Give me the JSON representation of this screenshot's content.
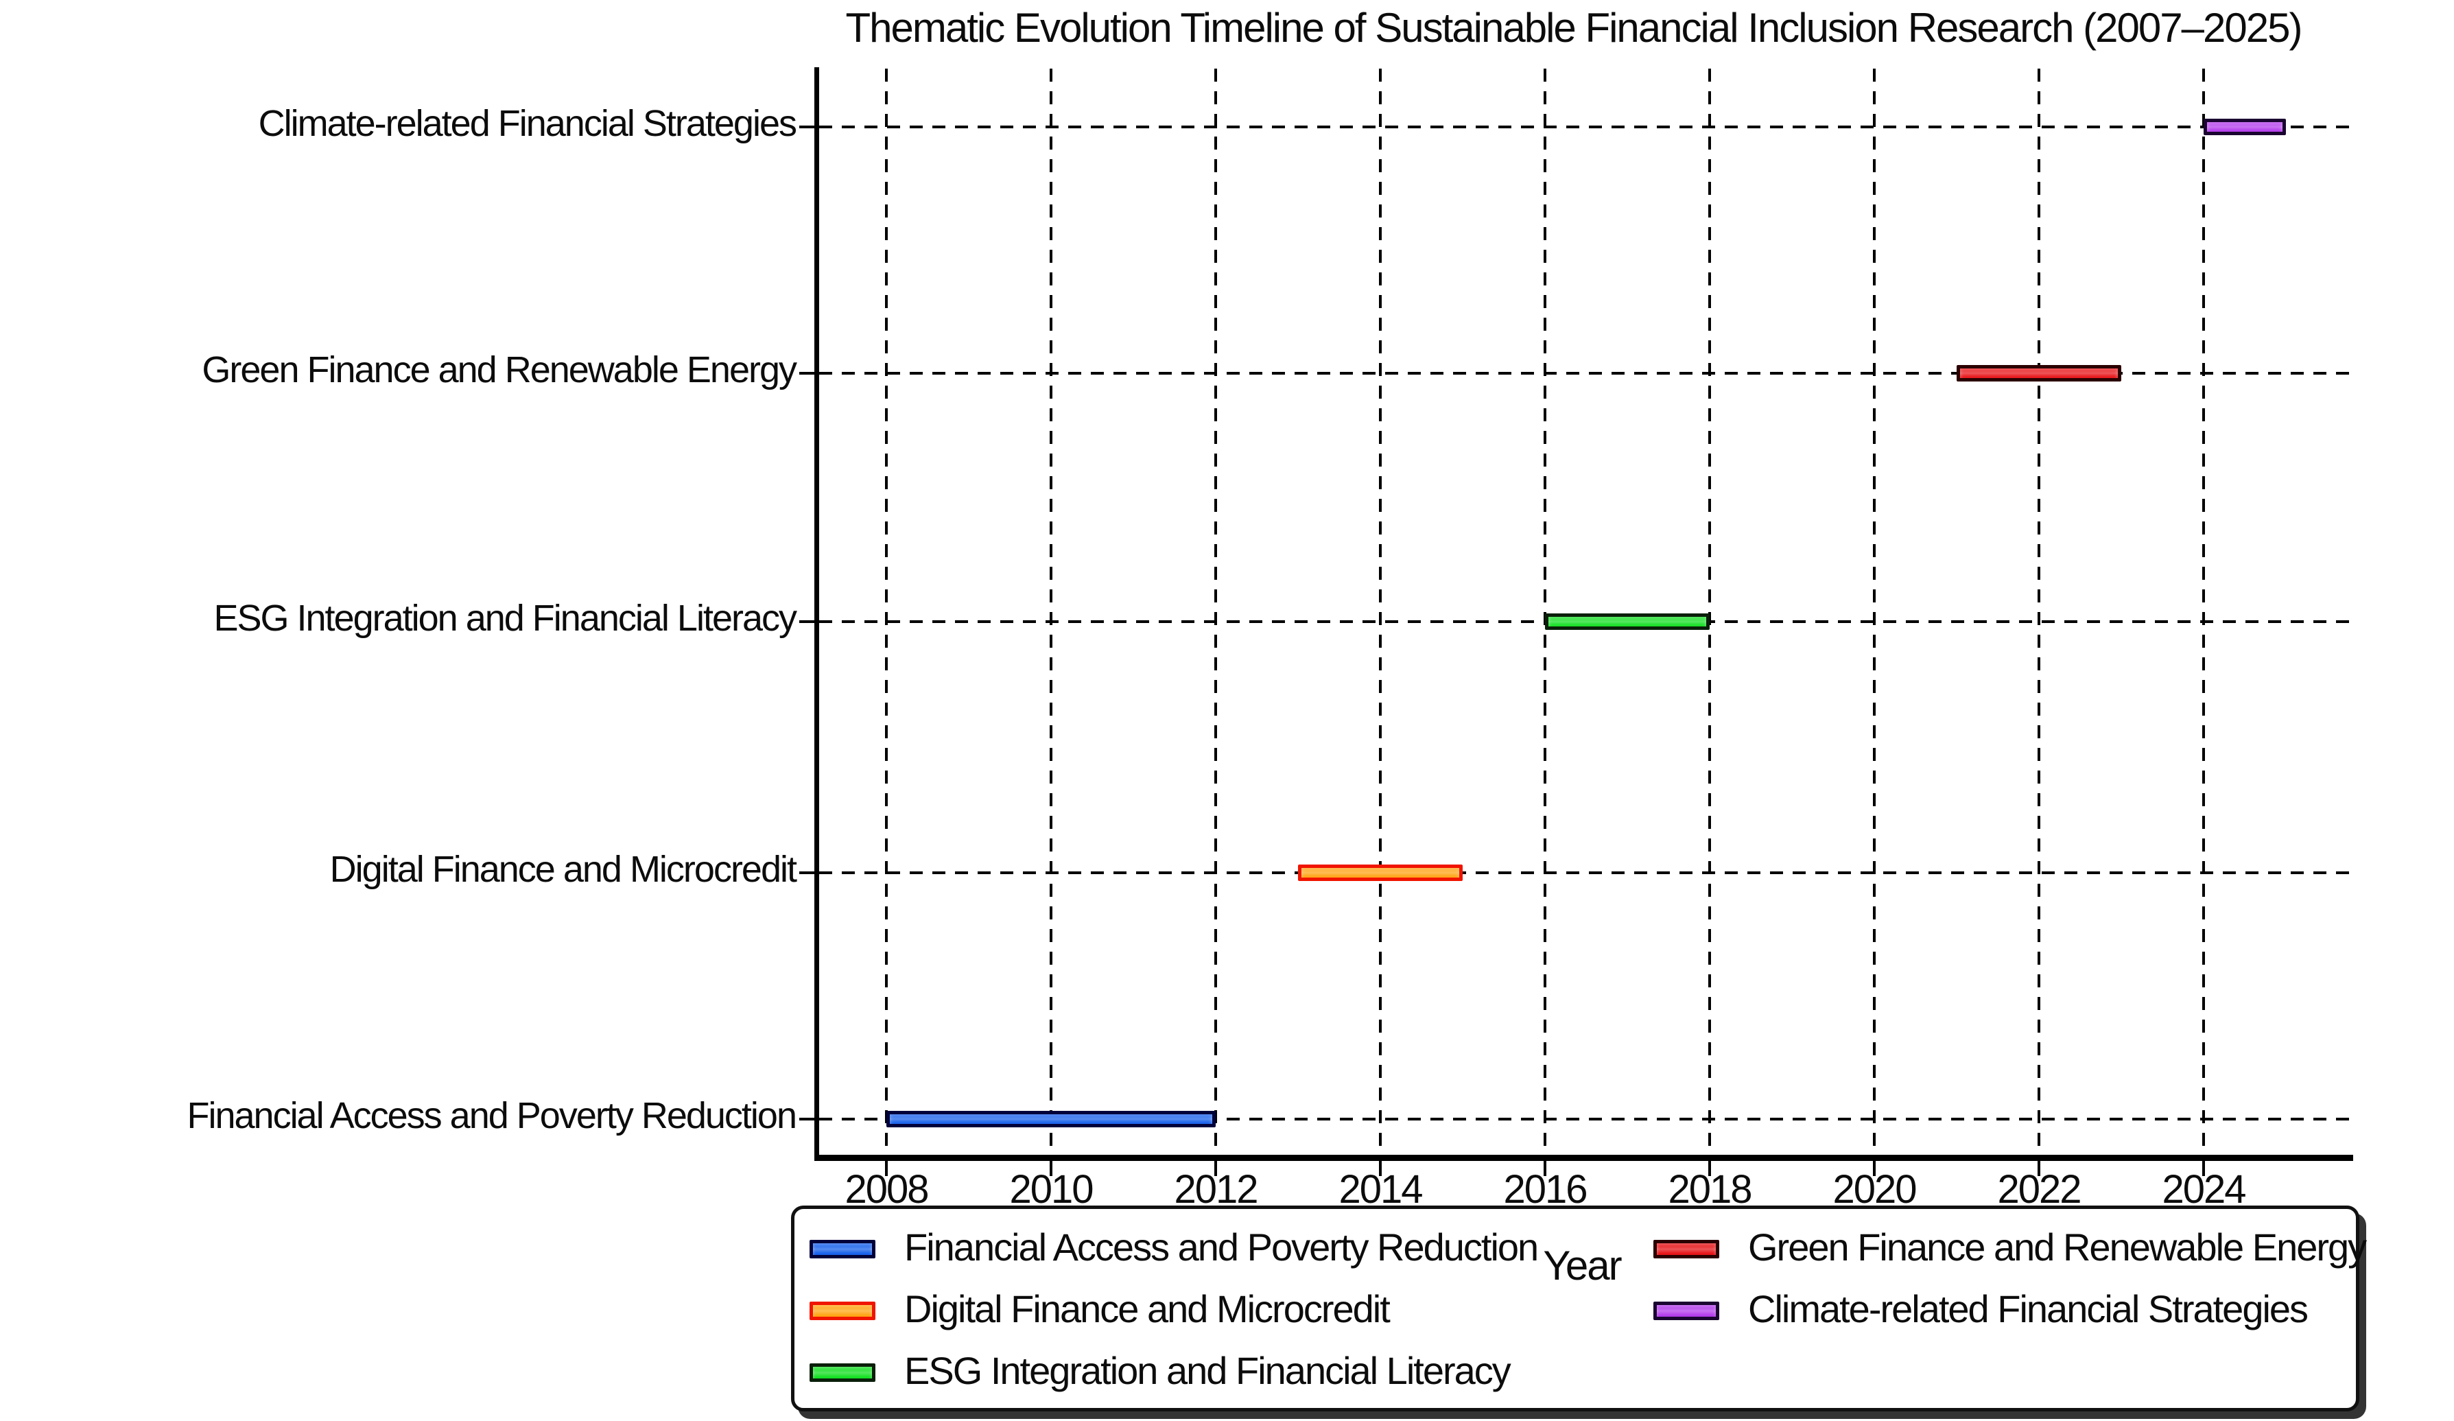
{
  "title": "Thematic Evolution Timeline of Sustainable Financial Inclusion Research (2007–2025)",
  "axis": {
    "xlabel": "Year"
  },
  "chart_data": {
    "type": "bar",
    "subtype": "horizontal_gantt_timeline",
    "title": "Thematic Evolution Timeline of Sustainable Financial Inclusion Research (2007–2025)",
    "xlabel": "Year",
    "ylabel": "",
    "x_ticks": [
      2008,
      2010,
      2012,
      2014,
      2016,
      2018,
      2020,
      2022,
      2024
    ],
    "xlim": [
      2007.2,
      2025.8
    ],
    "grid": {
      "vertical": true,
      "horizontal": true,
      "line_style": "dashed",
      "color": "#000000"
    },
    "categories_top_to_bottom": [
      "Climate-related Financial Strategies",
      "Green Finance and Renewable Energy",
      "ESG Integration and Financial Literacy",
      "Digital Finance and Microcredit",
      "Financial Access and Poverty Reduction"
    ],
    "series": [
      {
        "name": "Financial Access and Poverty Reduction",
        "start_year": 2008,
        "end_year": 2012,
        "row_from_top": 4,
        "fill": "#0353EA",
        "edge": "#02023A"
      },
      {
        "name": "Digital Finance and Microcredit",
        "start_year": 2013,
        "end_year": 2015,
        "row_from_top": 3,
        "fill": "#FF9D00",
        "edge": "#F01500"
      },
      {
        "name": "ESG Integration and Financial Literacy",
        "start_year": 2016,
        "end_year": 2018,
        "row_from_top": 2,
        "fill": "#00DC10",
        "edge": "#0A1F0A"
      },
      {
        "name": "Green Finance and Renewable Energy",
        "start_year": 2021,
        "end_year": 2023,
        "row_from_top": 1,
        "fill": "#E60004",
        "edge": "#2B0000"
      },
      {
        "name": "Climate-related Financial Strategies",
        "start_year": 2024,
        "end_year": 2025,
        "row_from_top": 0,
        "fill": "#AD2BEA",
        "edge": "#1A0530"
      }
    ],
    "legend": {
      "position": "bottom",
      "ncols": 2,
      "entries": [
        {
          "label": "Financial Access and Poverty Reduction",
          "fill": "#0353EA",
          "edge": "#02023A",
          "column": 0
        },
        {
          "label": "Digital Finance and Microcredit",
          "fill": "#FF9D00",
          "edge": "#F01500",
          "column": 0
        },
        {
          "label": "ESG Integration and Financial Literacy",
          "fill": "#00DC10",
          "edge": "#0A1F0A",
          "column": 0
        },
        {
          "label": "Green Finance and Renewable Energy",
          "fill": "#E60004",
          "edge": "#2B0000",
          "column": 1
        },
        {
          "label": "Climate-related Financial Strategies",
          "fill": "#AD2BEA",
          "edge": "#1A0530",
          "column": 1
        }
      ]
    }
  }
}
